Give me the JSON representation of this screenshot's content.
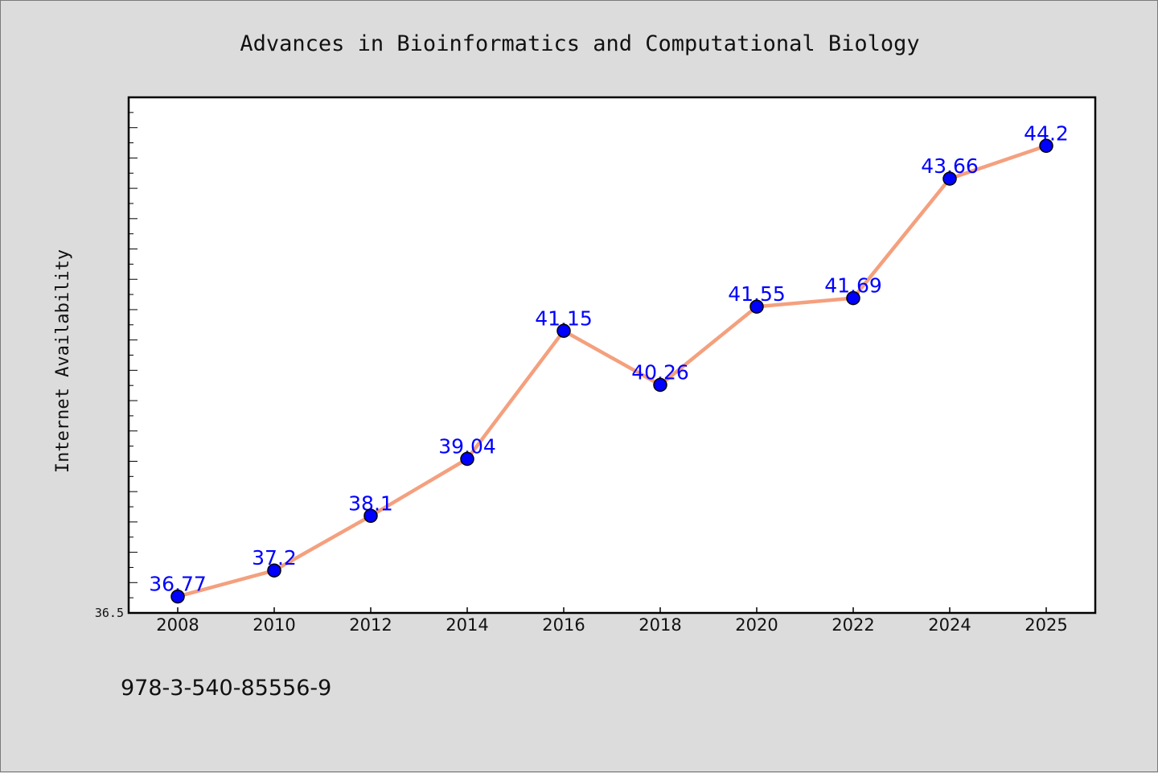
{
  "chart_data": {
    "type": "line",
    "title": "Advances in Bioinformatics and Computational Biology",
    "xlabel": "",
    "ylabel": "Internet Availability",
    "x": [
      "2008",
      "2010",
      "2012",
      "2014",
      "2016",
      "2018",
      "2020",
      "2022",
      "2024",
      "2025"
    ],
    "series": [
      {
        "values": [
          36.77,
          37.2,
          38.1,
          39.04,
          41.15,
          40.26,
          41.55,
          41.69,
          43.66,
          44.2
        ],
        "data_labels": [
          "36.77",
          "37.2",
          "38.1",
          "39.04",
          "41.15",
          "40.26",
          "41.55",
          "41.69",
          "43.66",
          "44.2"
        ]
      }
    ],
    "ylim": [
      36.5,
      45
    ],
    "ytick_labels": [
      "36.5"
    ],
    "grid": false,
    "colors": {
      "line": "#f4a07e",
      "marker": "#0000ff",
      "data_label": "#0000ff",
      "plot_background": "#ffffff",
      "figure_background": "#dcdcdc"
    }
  },
  "footer": {
    "isbn": "978-3-540-85556-9"
  }
}
